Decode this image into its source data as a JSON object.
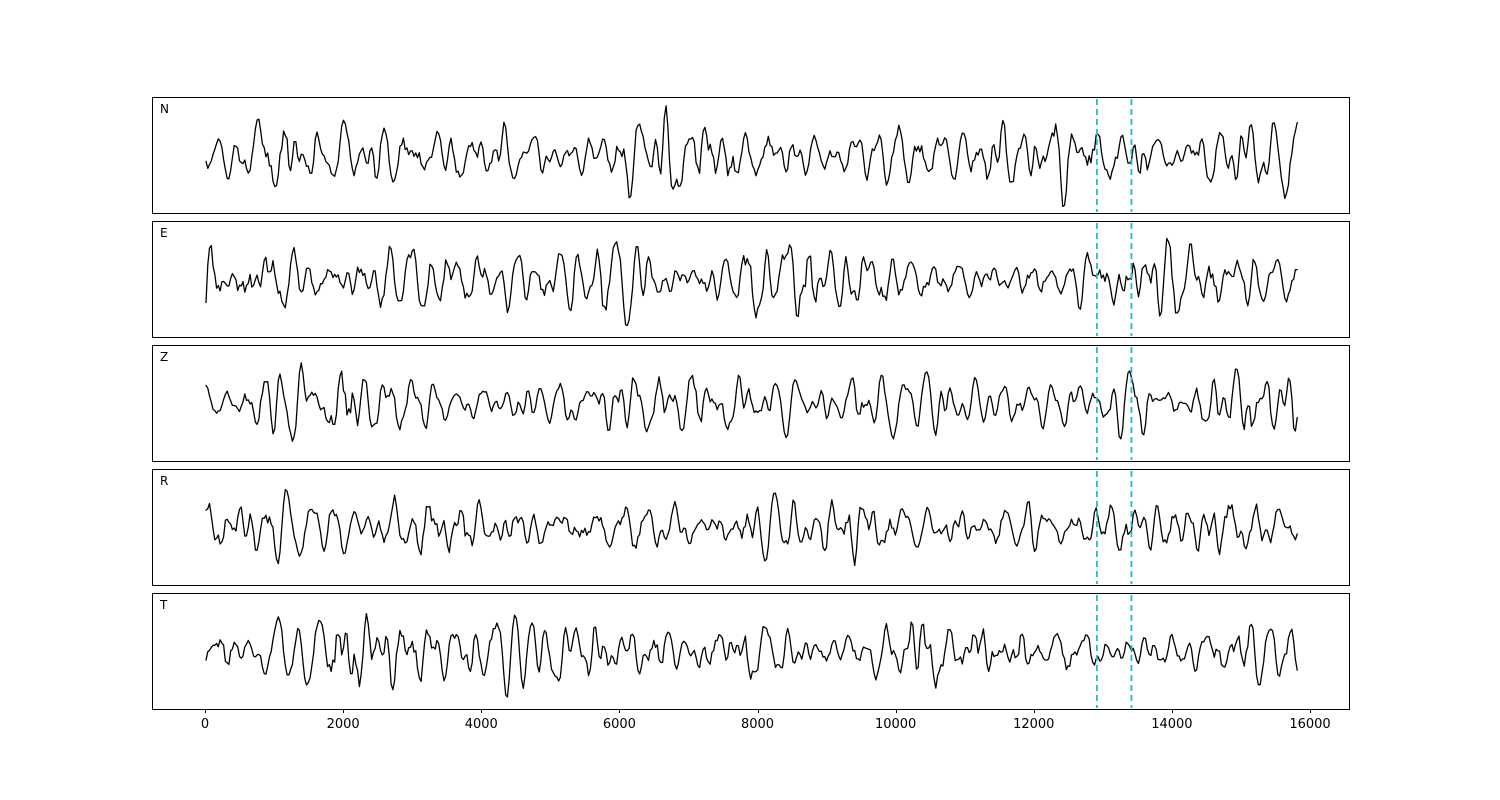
{
  "chart_data": {
    "type": "line",
    "title": "",
    "xlabel": "",
    "ylabel": "",
    "x_range": [
      0,
      16000
    ],
    "x_ticks": [
      0,
      2000,
      4000,
      6000,
      8000,
      10000,
      12000,
      14000,
      16000
    ],
    "x_tick_labels": [
      "0",
      "2000",
      "4000",
      "6000",
      "8000",
      "10000",
      "12000",
      "14000",
      "16000"
    ],
    "data_x_start": 0,
    "data_x_end": 15800,
    "grid": false,
    "legend": "none",
    "line_color": "#000000",
    "line_width": 1.3,
    "panels": [
      {
        "label": "N",
        "seed": 1101,
        "gain": 1.0,
        "signal": "band-limited random noise trace"
      },
      {
        "label": "E",
        "seed": 2202,
        "gain": 0.95,
        "signal": "band-limited random noise trace"
      },
      {
        "label": "Z",
        "seed": 3303,
        "gain": 0.9,
        "signal": "band-limited random noise trace"
      },
      {
        "label": "R",
        "seed": 4404,
        "gain": 0.95,
        "signal": "band-limited random noise trace"
      },
      {
        "label": "T",
        "seed": 5505,
        "gain": 1.05,
        "signal": "band-limited random noise trace"
      }
    ],
    "markers": {
      "positions": [
        12900,
        13400
      ],
      "color": "#1fbfca",
      "style": "dashed",
      "width": 1.8
    }
  }
}
